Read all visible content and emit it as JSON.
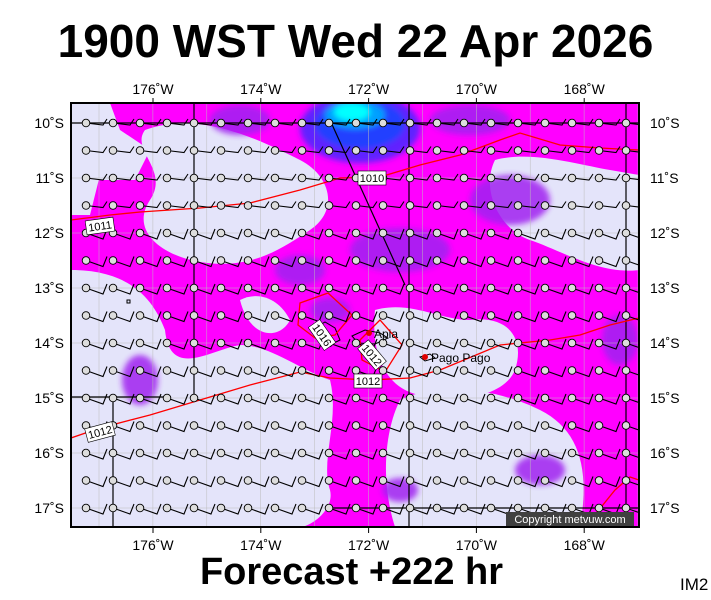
{
  "header": {
    "title": "1900 WST Wed 22 Apr 2026"
  },
  "footer": {
    "forecast": "Forecast +222 hr",
    "code": "IM2",
    "copyright": "Copyright metvuw.com"
  },
  "map": {
    "lon_labels": [
      "176˚W",
      "174˚W",
      "172˚W",
      "170˚W",
      "168˚W"
    ],
    "lat_labels": [
      "10˚S",
      "11˚S",
      "12˚S",
      "13˚S",
      "14˚S",
      "15˚S",
      "16˚S",
      "17˚S"
    ],
    "places": [
      {
        "name": "Apia"
      },
      {
        "name": "Pago Pago"
      }
    ],
    "isobar_labels": [
      "1011",
      "1010",
      "1016",
      "1012",
      "1012",
      "1012"
    ],
    "colors": {
      "background": "#ff00ff",
      "light": "#e4e4fa",
      "purple": "#a020f0",
      "blue": "#2040ff",
      "cyan": "#00ffff",
      "isobar": "#ff0000"
    }
  }
}
